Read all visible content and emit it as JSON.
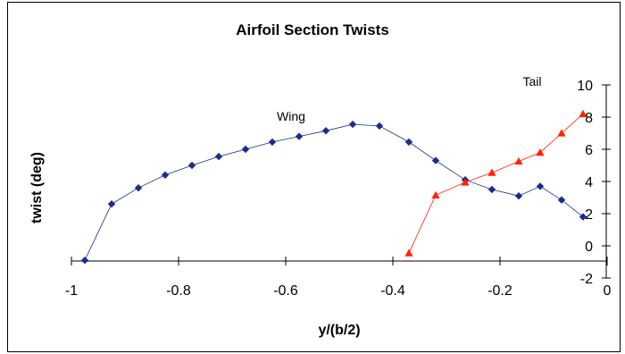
{
  "chart_data": {
    "type": "line",
    "title": "Airfoil Section Twists",
    "xlabel": "y/(b/2)",
    "ylabel": "twist  (deg)",
    "xlim": [
      -1,
      0
    ],
    "ylim": [
      -2,
      10
    ],
    "x_ticks": [
      "-1",
      "-0.8",
      "-0.6",
      "-0.4",
      "-0.2",
      "0"
    ],
    "y_ticks": [
      "-2",
      "0",
      "2",
      "4",
      "6",
      "8",
      "10"
    ],
    "grid": false,
    "legend": "none",
    "annotations": [
      "Wing",
      "Tail"
    ],
    "series": [
      {
        "name": "Wing",
        "color": "#1a2c8c",
        "marker": "diamond",
        "x": [
          -0.975,
          -0.925,
          -0.875,
          -0.825,
          -0.775,
          -0.725,
          -0.675,
          -0.625,
          -0.575,
          -0.525,
          -0.475,
          -0.425,
          -0.37,
          -0.32,
          -0.265,
          -0.215,
          -0.165,
          -0.125,
          -0.085,
          -0.045
        ],
        "y": [
          -0.9,
          2.6,
          3.6,
          4.4,
          5.0,
          5.55,
          6.0,
          6.45,
          6.8,
          7.15,
          7.55,
          7.45,
          6.45,
          5.3,
          4.1,
          3.5,
          3.1,
          3.7,
          2.85,
          1.8
        ]
      },
      {
        "name": "Tail",
        "color": "#ff2200",
        "marker": "triangle",
        "x": [
          -0.37,
          -0.32,
          -0.265,
          -0.215,
          -0.165,
          -0.125,
          -0.085,
          -0.045
        ],
        "y": [
          -0.45,
          3.15,
          3.95,
          4.55,
          5.25,
          5.8,
          7.0,
          8.2
        ]
      }
    ]
  }
}
